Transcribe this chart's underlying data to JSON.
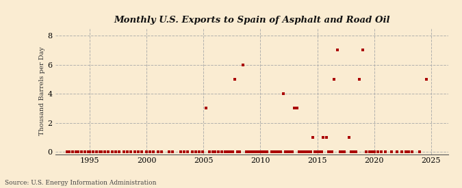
{
  "title": "Monthly U.S. Exports to Spain of Asphalt and Road Oil",
  "ylabel": "Thousand Barrels per Day",
  "source": "Source: U.S. Energy Information Administration",
  "background_color": "#faecd2",
  "plot_bg_color": "#faecd2",
  "marker_color": "#aa0000",
  "xlim": [
    1992.0,
    2026.5
  ],
  "ylim": [
    -0.15,
    8.5
  ],
  "xticks": [
    1995,
    2000,
    2005,
    2010,
    2015,
    2020,
    2025
  ],
  "yticks": [
    0,
    2,
    4,
    6,
    8
  ],
  "data_points": [
    [
      1993.0,
      0
    ],
    [
      1993.2,
      0
    ],
    [
      1993.5,
      0
    ],
    [
      1993.8,
      0
    ],
    [
      1994.0,
      0
    ],
    [
      1994.3,
      0
    ],
    [
      1994.6,
      0
    ],
    [
      1994.9,
      0
    ],
    [
      1995.0,
      0
    ],
    [
      1995.3,
      0
    ],
    [
      1995.6,
      0
    ],
    [
      1995.9,
      0
    ],
    [
      1996.0,
      0
    ],
    [
      1996.3,
      0
    ],
    [
      1996.6,
      0
    ],
    [
      1997.0,
      0
    ],
    [
      1997.3,
      0
    ],
    [
      1997.6,
      0
    ],
    [
      1998.0,
      0
    ],
    [
      1998.3,
      0
    ],
    [
      1998.6,
      0
    ],
    [
      1999.0,
      0
    ],
    [
      1999.3,
      0
    ],
    [
      1999.6,
      0
    ],
    [
      2000.0,
      0
    ],
    [
      2000.3,
      0
    ],
    [
      2000.6,
      0
    ],
    [
      2001.0,
      0
    ],
    [
      2001.3,
      0
    ],
    [
      2002.0,
      0
    ],
    [
      2002.3,
      0
    ],
    [
      2003.0,
      0
    ],
    [
      2003.3,
      0
    ],
    [
      2003.6,
      0
    ],
    [
      2004.0,
      0
    ],
    [
      2004.3,
      0
    ],
    [
      2004.6,
      0
    ],
    [
      2004.9,
      0
    ],
    [
      2005.2,
      3
    ],
    [
      2005.5,
      0
    ],
    [
      2005.8,
      0
    ],
    [
      2006.0,
      0
    ],
    [
      2006.3,
      0
    ],
    [
      2006.6,
      0
    ],
    [
      2006.9,
      0
    ],
    [
      2007.0,
      0
    ],
    [
      2007.2,
      0
    ],
    [
      2007.4,
      0
    ],
    [
      2007.6,
      0
    ],
    [
      2007.75,
      5
    ],
    [
      2008.0,
      0
    ],
    [
      2008.2,
      0
    ],
    [
      2008.5,
      6
    ],
    [
      2008.8,
      0
    ],
    [
      2009.0,
      0
    ],
    [
      2009.2,
      0
    ],
    [
      2009.4,
      0
    ],
    [
      2009.6,
      0
    ],
    [
      2009.8,
      0
    ],
    [
      2010.0,
      0
    ],
    [
      2010.2,
      0
    ],
    [
      2010.4,
      0
    ],
    [
      2010.6,
      0
    ],
    [
      2011.0,
      0
    ],
    [
      2011.2,
      0
    ],
    [
      2011.4,
      0
    ],
    [
      2011.6,
      0
    ],
    [
      2011.8,
      0
    ],
    [
      2012.0,
      4
    ],
    [
      2012.2,
      0
    ],
    [
      2012.4,
      0
    ],
    [
      2012.6,
      0
    ],
    [
      2012.8,
      0
    ],
    [
      2013.0,
      3
    ],
    [
      2013.2,
      3
    ],
    [
      2013.4,
      0
    ],
    [
      2013.6,
      0
    ],
    [
      2013.8,
      0
    ],
    [
      2014.0,
      0
    ],
    [
      2014.2,
      0
    ],
    [
      2014.4,
      0
    ],
    [
      2014.6,
      1
    ],
    [
      2014.8,
      0
    ],
    [
      2015.0,
      0
    ],
    [
      2015.2,
      0
    ],
    [
      2015.4,
      0
    ],
    [
      2015.5,
      1
    ],
    [
      2015.8,
      1
    ],
    [
      2016.0,
      0
    ],
    [
      2016.2,
      0
    ],
    [
      2016.3,
      0
    ],
    [
      2016.5,
      5
    ],
    [
      2016.8,
      7
    ],
    [
      2017.0,
      0
    ],
    [
      2017.2,
      0
    ],
    [
      2017.4,
      0
    ],
    [
      2017.8,
      1
    ],
    [
      2018.0,
      0
    ],
    [
      2018.2,
      0
    ],
    [
      2018.4,
      0
    ],
    [
      2018.7,
      5
    ],
    [
      2019.0,
      7
    ],
    [
      2019.3,
      0
    ],
    [
      2019.6,
      0
    ],
    [
      2019.8,
      0
    ],
    [
      2020.0,
      0
    ],
    [
      2020.3,
      0
    ],
    [
      2020.6,
      0
    ],
    [
      2021.0,
      0
    ],
    [
      2021.5,
      0
    ],
    [
      2022.0,
      0
    ],
    [
      2022.4,
      0
    ],
    [
      2022.8,
      0
    ],
    [
      2023.0,
      0
    ],
    [
      2023.3,
      0
    ],
    [
      2024.0,
      0
    ],
    [
      2024.6,
      5
    ]
  ]
}
